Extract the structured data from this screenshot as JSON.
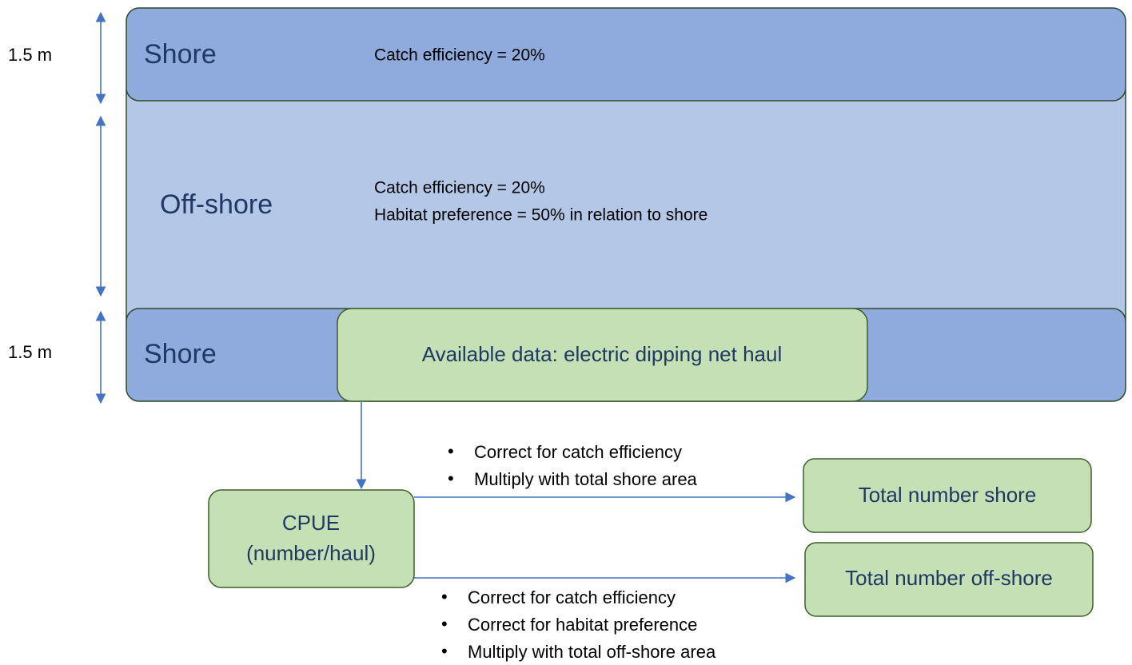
{
  "zones": [
    {
      "label": "Shore",
      "dimension": "1.5 m",
      "notes": [
        "Catch efficiency = 20%"
      ]
    },
    {
      "label": "Off-shore",
      "notes": [
        "Catch efficiency = 20%",
        "Habitat preference = 50% in relation to shore"
      ]
    },
    {
      "label": "Shore",
      "dimension": "1.5 m"
    }
  ],
  "source": "Available data: electric dipping net haul",
  "cpue": [
    "CPUE",
    "(number/haul)"
  ],
  "outputs": [
    {
      "label": "Total number shore",
      "steps": [
        "Correct for catch efficiency",
        "Multiply with total shore area"
      ]
    },
    {
      "label": "Total number off-shore",
      "steps": [
        "Correct for catch efficiency",
        "Correct for habitat preference",
        "Multiply with total off-shore area"
      ]
    }
  ]
}
